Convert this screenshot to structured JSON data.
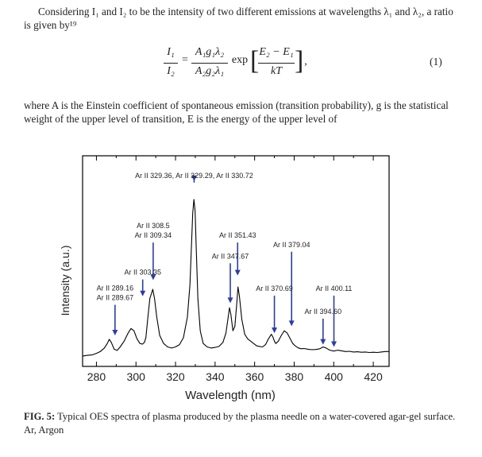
{
  "paragraph1": "Considering I₁ and I₂ to be the intensity of two different emissions at wavelengths λ₁ and λ₂, a ratio is given by¹⁹",
  "equation": {
    "lhs_num": "I₁",
    "lhs_den": "I₂",
    "mid_num": "A₁g₁λ₂",
    "mid_den": "A₂g₂λ₁",
    "exp": "exp",
    "exp_num": "E₂ − E₁",
    "exp_den": "kT",
    "number": "(1)"
  },
  "paragraph2": "where A is the Einstein coefficient of spontaneous emission (transition probability), g is the statistical weight of the upper level of transition, E is the energy of the upper level of",
  "chart_data": {
    "type": "line",
    "xlabel": "Wavelength (nm)",
    "ylabel": "Intensity (a.u.)",
    "xlim": [
      273,
      428
    ],
    "xticks": [
      280,
      300,
      320,
      340,
      360,
      380,
      400,
      420
    ],
    "line_color": "#000000",
    "arrow_color": "#2d3e9e",
    "series": [
      {
        "x": [
          273,
          275,
          278,
          280,
          282,
          284,
          285.5,
          286.5,
          287.5,
          289,
          290.5,
          292,
          294,
          296,
          297.5,
          299,
          300.5,
          302,
          303.3,
          304.3,
          305,
          305.8,
          307,
          308.5,
          309.4,
          310.5,
          312,
          314,
          316,
          318,
          320,
          322,
          324,
          326,
          327.3,
          328,
          328.7,
          329.3,
          329.9,
          330.5,
          331.3,
          332.5,
          334,
          336,
          338,
          340,
          342,
          344,
          345.5,
          346.5,
          347.3,
          348,
          349,
          350,
          351,
          351.6,
          352.3,
          353.5,
          355,
          356.5,
          358,
          359.5,
          361,
          362.5,
          364,
          365.5,
          367,
          368.5,
          369.3,
          370,
          370.7,
          372,
          373.5,
          375,
          376.5,
          378,
          379.3,
          380.5,
          382,
          383.5,
          385,
          387,
          389,
          391,
          393,
          394.6,
          396,
          398,
          400,
          402,
          404,
          406,
          408,
          410,
          412,
          414,
          416,
          418,
          420,
          422,
          424,
          426,
          428
        ],
        "y": [
          1.0,
          1.3,
          1.6,
          2.2,
          3.0,
          4.5,
          6.5,
          8.3,
          7.0,
          4.0,
          3.5,
          5.0,
          7.5,
          11,
          13,
          12,
          8.5,
          6.5,
          6.2,
          7.0,
          9.0,
          16,
          26,
          30,
          26,
          18,
          10,
          6.5,
          5.0,
          4.5,
          5.0,
          6.0,
          9.0,
          18,
          32,
          48,
          63,
          69,
          64,
          47,
          26,
          12,
          6.5,
          5.0,
          4.5,
          4.8,
          5.2,
          7.0,
          11,
          17,
          22,
          19,
          12,
          14,
          24,
          31,
          27,
          17,
          10.5,
          8.5,
          7.5,
          6.5,
          5.5,
          5.2,
          5.0,
          6.0,
          8.5,
          10.5,
          9.2,
          7.5,
          6.5,
          7.5,
          10,
          12,
          11,
          8.5,
          6.5,
          5.5,
          4.6,
          4.2,
          4.3,
          4.0,
          3.8,
          3.9,
          4.2,
          5.0,
          4.6,
          3.6,
          3.2,
          3.6,
          3.3,
          3.0,
          3.1,
          2.8,
          2.9,
          2.7,
          2.8,
          2.6,
          2.7,
          2.6,
          2.8,
          3.0,
          3.0
        ]
      }
    ],
    "annotations": [
      {
        "lines": [
          "Ar II 329.36, Ar II 329.29, Ar II 330.72"
        ],
        "x": 329.4,
        "tip_y": 77,
        "label_level": 78
      },
      {
        "lines": [
          "Ar II 308.5",
          "Ar II 309.34"
        ],
        "x": 308.7,
        "tip_y": 34,
        "label_level": 52
      },
      {
        "lines": [
          "Ar II 303.35"
        ],
        "x": 303.4,
        "tip_y": 27,
        "label_level": 36
      },
      {
        "lines": [
          "Ar II 289.16",
          "Ar II 289.67"
        ],
        "x": 289.4,
        "tip_y": 10,
        "label_level": 25
      },
      {
        "lines": [
          "Ar II 351.43"
        ],
        "x": 351.4,
        "tip_y": 36,
        "label_level": 52
      },
      {
        "lines": [
          "Ar II 347.67"
        ],
        "x": 347.7,
        "tip_y": 24,
        "label_level": 43
      },
      {
        "lines": [
          "Ar II 379.04"
        ],
        "x": 378.7,
        "tip_y": 14,
        "label_level": 48
      },
      {
        "lines": [
          "Ar II 370.69"
        ],
        "x": 370.0,
        "tip_y": 11,
        "label_level": 29
      },
      {
        "lines": [
          "Ar II 400.11"
        ],
        "x": 400.1,
        "tip_y": 5,
        "label_level": 29
      },
      {
        "lines": [
          "Ar II 394.60"
        ],
        "x": 394.6,
        "tip_y": 6,
        "label_level": 19
      }
    ]
  },
  "caption": {
    "label": "FIG. 5:",
    "text": " Typical OES spectra of plasma produced by the plasma needle on a water-covered agar-gel surface. Ar, Argon"
  }
}
